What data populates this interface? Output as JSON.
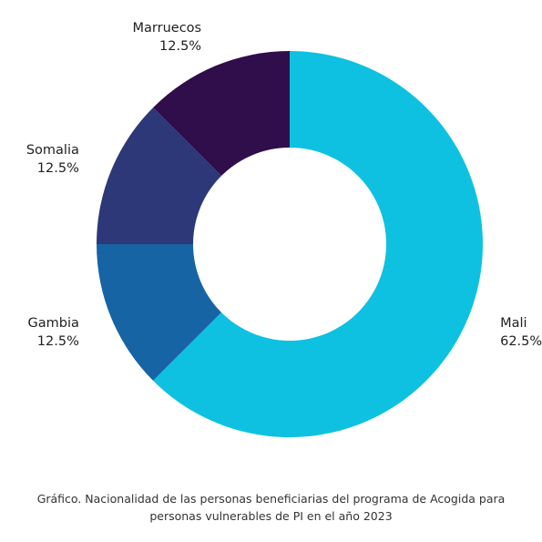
{
  "chart_data": {
    "type": "donut",
    "title": "",
    "categories": [
      "Mali",
      "Gambia",
      "Somalia",
      "Marruecos"
    ],
    "values": [
      62.5,
      12.5,
      12.5,
      12.5
    ],
    "value_labels": [
      "62.5%",
      "12.5%",
      "12.5%",
      "12.5%"
    ],
    "colors": [
      "#0ec1e0",
      "#1764a5",
      "#2c3878",
      "#300d4b"
    ],
    "legend": "none",
    "start_angle_deg": 0,
    "direction": "clockwise"
  },
  "caption": {
    "line1": "Gráfico. Nacionalidad de las personas beneficiarias del programa de Acogida para",
    "line2": "personas vulnerables de PI en el año 2023"
  }
}
